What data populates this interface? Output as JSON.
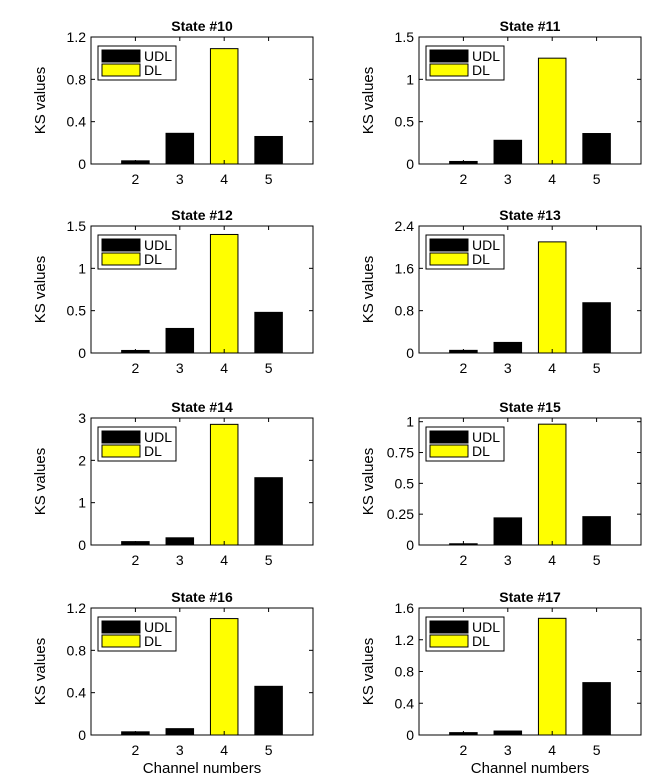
{
  "legend": {
    "udl_label": "UDL",
    "dl_label": "DL"
  },
  "colors": {
    "udl": "#000000",
    "dl": "#ffff00",
    "axis": "#000000"
  },
  "chart_data": [
    {
      "type": "bar",
      "title": "State #10",
      "ylabel": "KS values",
      "xlabel": "",
      "categories": [
        "2",
        "3",
        "4",
        "5"
      ],
      "values": [
        0.03,
        0.29,
        1.09,
        0.26
      ],
      "series_of_bar": [
        "UDL",
        "UDL",
        "DL",
        "UDL"
      ],
      "ylim": [
        0,
        1.2
      ],
      "yticks": [
        "0",
        "0.4",
        "0.8",
        "1.2"
      ],
      "ytick_values": [
        0,
        0.4,
        0.8,
        1.2
      ],
      "legend": "top-left",
      "grid": false
    },
    {
      "type": "bar",
      "title": "State #11",
      "ylabel": "KS values",
      "xlabel": "",
      "categories": [
        "2",
        "3",
        "4",
        "5"
      ],
      "values": [
        0.03,
        0.28,
        1.25,
        0.36
      ],
      "series_of_bar": [
        "UDL",
        "UDL",
        "DL",
        "UDL"
      ],
      "ylim": [
        0,
        1.5
      ],
      "yticks": [
        "0",
        "0.5",
        "1",
        "1.5"
      ],
      "ytick_values": [
        0,
        0.5,
        1,
        1.5
      ],
      "legend": "top-left",
      "grid": false
    },
    {
      "type": "bar",
      "title": "State #12",
      "ylabel": "KS values",
      "xlabel": "",
      "categories": [
        "2",
        "3",
        "4",
        "5"
      ],
      "values": [
        0.03,
        0.29,
        1.4,
        0.48
      ],
      "series_of_bar": [
        "UDL",
        "UDL",
        "DL",
        "UDL"
      ],
      "ylim": [
        0,
        1.5
      ],
      "yticks": [
        "0",
        "0.5",
        "1",
        "1.5"
      ],
      "ytick_values": [
        0,
        0.5,
        1,
        1.5
      ],
      "legend": "top-left",
      "grid": false
    },
    {
      "type": "bar",
      "title": "State #13",
      "ylabel": "KS values",
      "xlabel": "",
      "categories": [
        "2",
        "3",
        "4",
        "5"
      ],
      "values": [
        0.05,
        0.2,
        2.1,
        0.95
      ],
      "series_of_bar": [
        "UDL",
        "UDL",
        "DL",
        "UDL"
      ],
      "ylim": [
        0,
        2.4
      ],
      "yticks": [
        "0",
        "0.8",
        "1.6",
        "2.4"
      ],
      "ytick_values": [
        0,
        0.8,
        1.6,
        2.4
      ],
      "legend": "top-left",
      "grid": false
    },
    {
      "type": "bar",
      "title": "State #14",
      "ylabel": "KS values",
      "xlabel": "",
      "categories": [
        "2",
        "3",
        "4",
        "5"
      ],
      "values": [
        0.08,
        0.17,
        2.85,
        1.59
      ],
      "series_of_bar": [
        "UDL",
        "UDL",
        "DL",
        "UDL"
      ],
      "ylim": [
        0,
        3
      ],
      "yticks": [
        "0",
        "1",
        "2",
        "3"
      ],
      "ytick_values": [
        0,
        1,
        2,
        3
      ],
      "legend": "top-left",
      "grid": false
    },
    {
      "type": "bar",
      "title": "State #15",
      "ylabel": "KS values",
      "xlabel": "",
      "categories": [
        "2",
        "3",
        "4",
        "5"
      ],
      "values": [
        0.01,
        0.22,
        0.98,
        0.23
      ],
      "series_of_bar": [
        "UDL",
        "UDL",
        "DL",
        "UDL"
      ],
      "ylim": [
        0,
        1.03
      ],
      "yticks": [
        "0",
        "0.25",
        "0.5",
        "0.75",
        "1"
      ],
      "ytick_values": [
        0,
        0.25,
        0.5,
        0.75,
        1
      ],
      "legend": "top-left",
      "grid": false
    },
    {
      "type": "bar",
      "title": "State #16",
      "ylabel": "KS values",
      "xlabel": "Channel numbers",
      "categories": [
        "2",
        "3",
        "4",
        "5"
      ],
      "values": [
        0.03,
        0.06,
        1.1,
        0.46
      ],
      "series_of_bar": [
        "UDL",
        "UDL",
        "DL",
        "UDL"
      ],
      "ylim": [
        0,
        1.2
      ],
      "yticks": [
        "0",
        "0.4",
        "0.8",
        "1.2"
      ],
      "ytick_values": [
        0,
        0.4,
        0.8,
        1.2
      ],
      "legend": "top-left",
      "grid": false
    },
    {
      "type": "bar",
      "title": "State #17",
      "ylabel": "KS values",
      "xlabel": "Channel numbers",
      "categories": [
        "2",
        "3",
        "4",
        "5"
      ],
      "values": [
        0.03,
        0.05,
        1.47,
        0.66
      ],
      "series_of_bar": [
        "UDL",
        "UDL",
        "DL",
        "UDL"
      ],
      "ylim": [
        0,
        1.6
      ],
      "yticks": [
        "0",
        "0.4",
        "0.8",
        "1.2",
        "1.6"
      ],
      "ytick_values": [
        0,
        0.4,
        0.8,
        1.2,
        1.6
      ],
      "legend": "top-left",
      "grid": false
    }
  ]
}
